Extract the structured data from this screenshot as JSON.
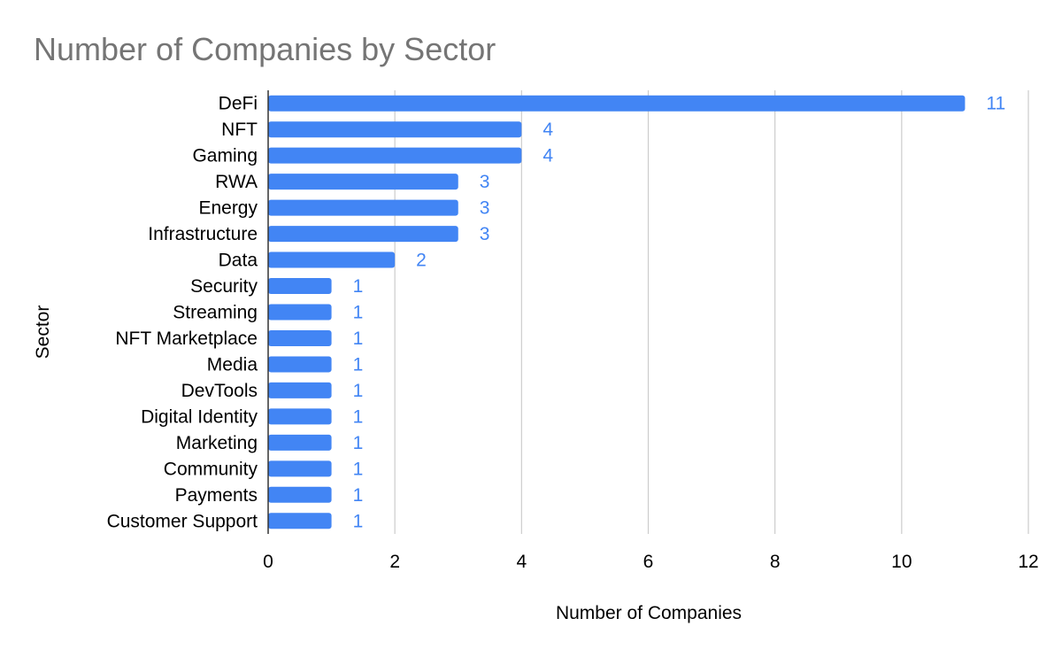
{
  "chart_data": {
    "type": "bar",
    "orientation": "horizontal",
    "title": "Number of Companies by Sector",
    "xlabel": "Number of Companies",
    "ylabel": "Sector",
    "xlim": [
      0,
      12
    ],
    "x_ticks": [
      "0",
      "2",
      "4",
      "6",
      "8",
      "10",
      "12"
    ],
    "grid": "vertical",
    "data_labels": true,
    "bar_color": "#4285f4",
    "label_color": "#4285f4",
    "categories": [
      "DeFi",
      "NFT",
      "Gaming",
      "RWA",
      "Energy",
      "Infrastructure",
      "Data",
      "Security",
      "Streaming",
      "NFT Marketplace",
      "Media",
      "DevTools",
      "Digital Identity",
      "Marketing",
      "Community",
      "Payments",
      "Customer Support"
    ],
    "values": [
      11,
      4,
      4,
      3,
      3,
      3,
      2,
      1,
      1,
      1,
      1,
      1,
      1,
      1,
      1,
      1,
      1
    ]
  }
}
